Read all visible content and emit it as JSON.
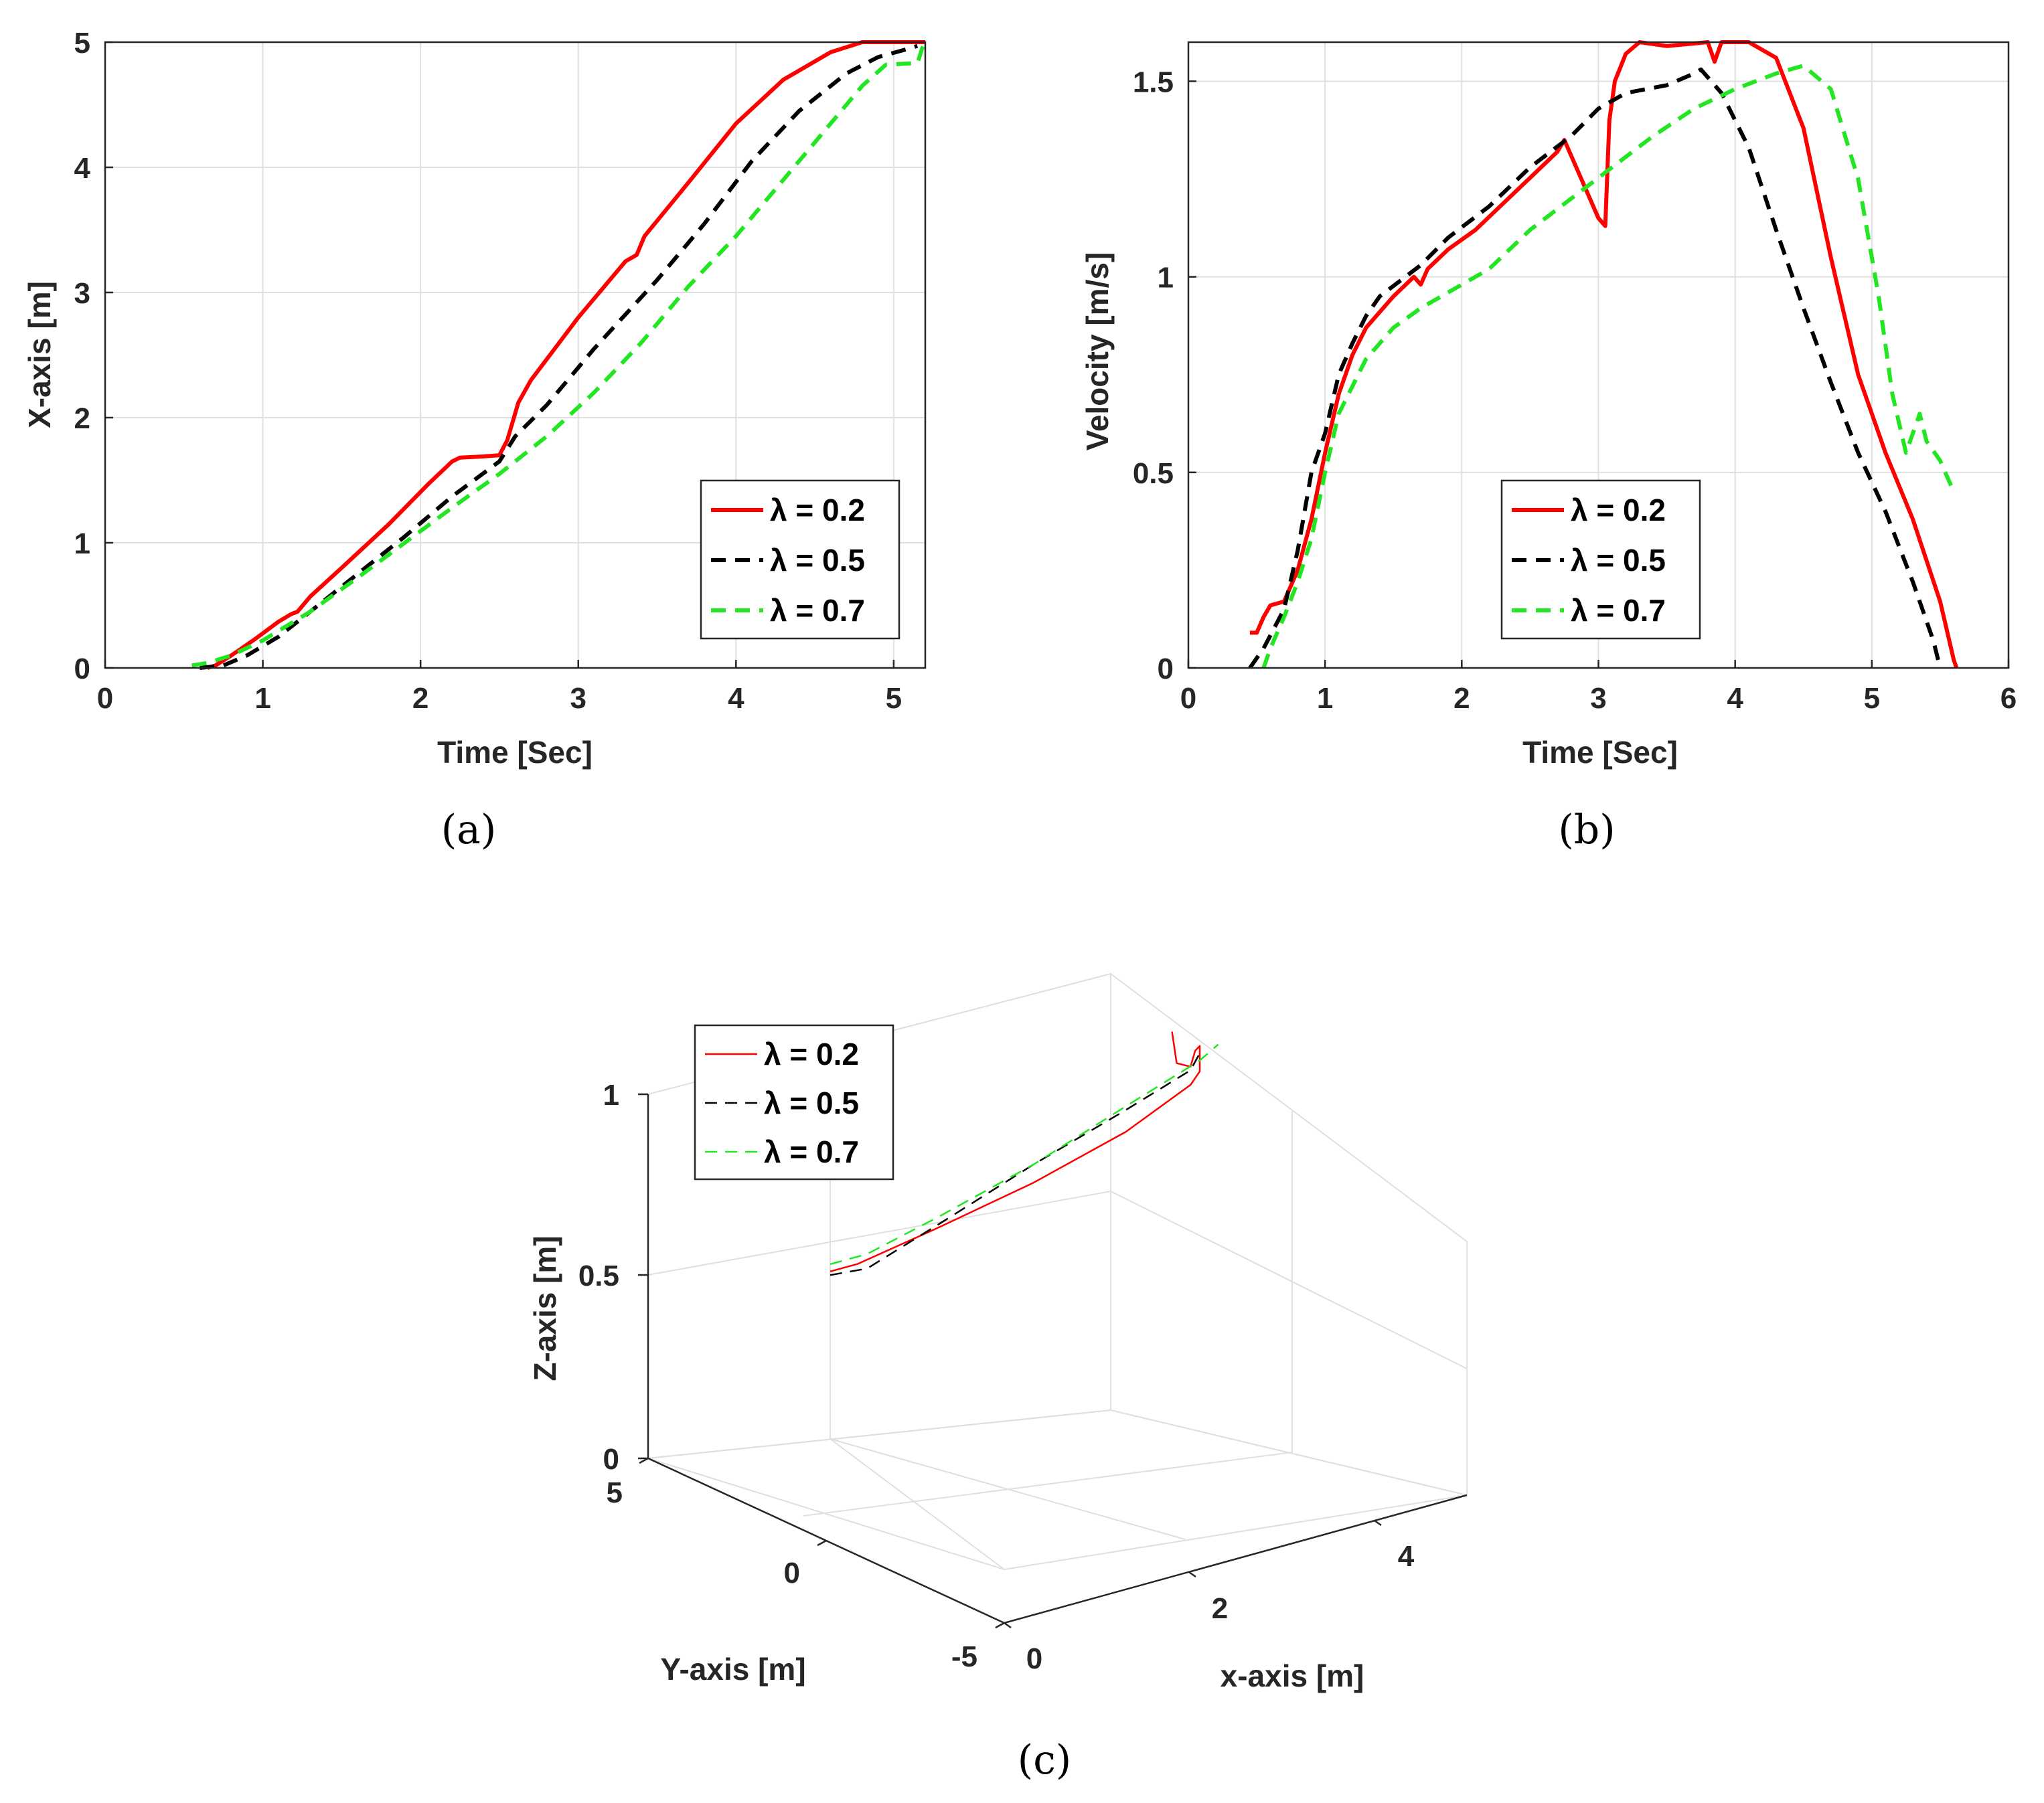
{
  "colors": {
    "red": "#ff0000",
    "black": "#000000",
    "green": "#22e622",
    "grid": "#dfdfdf",
    "axis": "#262626"
  },
  "captions": {
    "a": "(a)",
    "b": "(b)",
    "c": "(c)"
  },
  "legend_labels": [
    "λ = 0.2",
    "λ = 0.5",
    "λ = 0.7"
  ],
  "chart_data": [
    {
      "id": "a",
      "type": "line",
      "xlabel": "Time [Sec]",
      "ylabel": "X-axis [m]",
      "xlim": [
        0,
        5.2
      ],
      "ylim": [
        0,
        5
      ],
      "xticks": [
        0,
        1,
        2,
        3,
        4,
        5
      ],
      "yticks": [
        0,
        1,
        2,
        3,
        4,
        5
      ],
      "xtick_labels": [
        "0",
        "1",
        "2",
        "3",
        "4",
        "5"
      ],
      "ytick_labels": [
        "0",
        "1",
        "2",
        "3",
        "4",
        "5"
      ],
      "grid": true,
      "legend_position": "bottom-right",
      "series": [
        {
          "name": "λ = 0.2",
          "style": "solid",
          "color": "red",
          "points": [
            [
              0.65,
              0
            ],
            [
              0.7,
              0.02
            ],
            [
              0.8,
              0.1
            ],
            [
              0.95,
              0.23
            ],
            [
              1.1,
              0.37
            ],
            [
              1.18,
              0.43
            ],
            [
              1.22,
              0.45
            ],
            [
              1.3,
              0.57
            ],
            [
              1.5,
              0.8
            ],
            [
              1.8,
              1.15
            ],
            [
              2.05,
              1.47
            ],
            [
              2.2,
              1.65
            ],
            [
              2.25,
              1.68
            ],
            [
              2.4,
              1.69
            ],
            [
              2.5,
              1.7
            ],
            [
              2.55,
              1.82
            ],
            [
              2.62,
              2.12
            ],
            [
              2.7,
              2.3
            ],
            [
              3.0,
              2.8
            ],
            [
              3.3,
              3.25
            ],
            [
              3.37,
              3.3
            ],
            [
              3.42,
              3.45
            ],
            [
              3.7,
              3.88
            ],
            [
              4.0,
              4.35
            ],
            [
              4.3,
              4.7
            ],
            [
              4.6,
              4.92
            ],
            [
              4.8,
              5
            ],
            [
              5.2,
              5
            ]
          ]
        },
        {
          "name": "λ = 0.5",
          "style": "dashed",
          "color": "black",
          "points": [
            [
              0.6,
              0
            ],
            [
              0.75,
              0.02
            ],
            [
              0.9,
              0.1
            ],
            [
              1.1,
              0.25
            ],
            [
              1.3,
              0.45
            ],
            [
              1.6,
              0.75
            ],
            [
              1.9,
              1.05
            ],
            [
              2.2,
              1.37
            ],
            [
              2.5,
              1.65
            ],
            [
              2.6,
              1.85
            ],
            [
              2.8,
              2.1
            ],
            [
              3.1,
              2.55
            ],
            [
              3.5,
              3.1
            ],
            [
              3.8,
              3.55
            ],
            [
              4.1,
              4.05
            ],
            [
              4.4,
              4.45
            ],
            [
              4.7,
              4.75
            ],
            [
              4.9,
              4.88
            ],
            [
              5.1,
              4.95
            ],
            [
              5.15,
              4.97
            ]
          ]
        },
        {
          "name": "λ = 0.7",
          "style": "dashed",
          "color": "green",
          "points": [
            [
              0.55,
              0.02
            ],
            [
              0.65,
              0.04
            ],
            [
              0.8,
              0.1
            ],
            [
              1.0,
              0.22
            ],
            [
              1.3,
              0.45
            ],
            [
              1.6,
              0.72
            ],
            [
              1.9,
              1.0
            ],
            [
              2.2,
              1.28
            ],
            [
              2.5,
              1.55
            ],
            [
              2.8,
              1.85
            ],
            [
              3.1,
              2.2
            ],
            [
              3.4,
              2.6
            ],
            [
              3.7,
              3.05
            ],
            [
              4.0,
              3.45
            ],
            [
              4.3,
              3.9
            ],
            [
              4.6,
              4.35
            ],
            [
              4.8,
              4.65
            ],
            [
              4.95,
              4.82
            ],
            [
              5.1,
              4.83
            ],
            [
              5.15,
              4.83
            ],
            [
              5.18,
              4.95
            ],
            [
              5.2,
              5.0
            ]
          ]
        }
      ]
    },
    {
      "id": "b",
      "type": "line",
      "xlabel": "Time [Sec]",
      "ylabel": "Velocity [m/s]",
      "xlim": [
        0,
        6
      ],
      "ylim": [
        0,
        1.6
      ],
      "xticks": [
        0,
        1,
        2,
        3,
        4,
        5,
        6
      ],
      "yticks": [
        0,
        0.5,
        1,
        1.5
      ],
      "xtick_labels": [
        "0",
        "1",
        "2",
        "3",
        "4",
        "5",
        "6"
      ],
      "ytick_labels": [
        "0",
        "0.5",
        "1",
        "1.5"
      ],
      "grid": true,
      "legend_position": "bottom-center",
      "series": [
        {
          "name": "λ = 0.2",
          "style": "solid",
          "color": "red",
          "points": [
            [
              0.45,
              0.09
            ],
            [
              0.5,
              0.09
            ],
            [
              0.55,
              0.13
            ],
            [
              0.6,
              0.16
            ],
            [
              0.7,
              0.17
            ],
            [
              0.8,
              0.25
            ],
            [
              0.9,
              0.38
            ],
            [
              1.0,
              0.55
            ],
            [
              1.1,
              0.7
            ],
            [
              1.2,
              0.8
            ],
            [
              1.3,
              0.87
            ],
            [
              1.5,
              0.95
            ],
            [
              1.65,
              1.0
            ],
            [
              1.7,
              0.98
            ],
            [
              1.75,
              1.02
            ],
            [
              1.9,
              1.07
            ],
            [
              2.1,
              1.12
            ],
            [
              2.4,
              1.22
            ],
            [
              2.7,
              1.32
            ],
            [
              2.75,
              1.35
            ],
            [
              2.85,
              1.27
            ],
            [
              3.0,
              1.15
            ],
            [
              3.05,
              1.13
            ],
            [
              3.08,
              1.4
            ],
            [
              3.12,
              1.5
            ],
            [
              3.2,
              1.57
            ],
            [
              3.3,
              1.6
            ],
            [
              3.5,
              1.59
            ],
            [
              3.8,
              1.6
            ],
            [
              3.85,
              1.55
            ],
            [
              3.9,
              1.6
            ],
            [
              4.1,
              1.6
            ],
            [
              4.3,
              1.56
            ],
            [
              4.5,
              1.38
            ],
            [
              4.7,
              1.05
            ],
            [
              4.9,
              0.75
            ],
            [
              5.1,
              0.55
            ],
            [
              5.3,
              0.38
            ],
            [
              5.5,
              0.17
            ],
            [
              5.6,
              0.02
            ],
            [
              5.62,
              0
            ]
          ]
        },
        {
          "name": "λ = 0.5",
          "style": "dashed",
          "color": "black",
          "points": [
            [
              0.45,
              0
            ],
            [
              0.55,
              0.05
            ],
            [
              0.7,
              0.15
            ],
            [
              0.8,
              0.3
            ],
            [
              0.9,
              0.5
            ],
            [
              1.0,
              0.6
            ],
            [
              1.1,
              0.75
            ],
            [
              1.2,
              0.83
            ],
            [
              1.3,
              0.9
            ],
            [
              1.4,
              0.95
            ],
            [
              1.55,
              0.99
            ],
            [
              1.7,
              1.03
            ],
            [
              1.9,
              1.1
            ],
            [
              2.2,
              1.18
            ],
            [
              2.5,
              1.28
            ],
            [
              2.8,
              1.36
            ],
            [
              3.0,
              1.43
            ],
            [
              3.2,
              1.47
            ],
            [
              3.5,
              1.49
            ],
            [
              3.7,
              1.52
            ],
            [
              3.75,
              1.53
            ],
            [
              3.9,
              1.47
            ],
            [
              4.1,
              1.33
            ],
            [
              4.3,
              1.12
            ],
            [
              4.5,
              0.92
            ],
            [
              4.7,
              0.73
            ],
            [
              4.9,
              0.55
            ],
            [
              5.1,
              0.4
            ],
            [
              5.3,
              0.22
            ],
            [
              5.45,
              0.07
            ],
            [
              5.5,
              0
            ]
          ]
        },
        {
          "name": "λ = 0.7",
          "style": "dashed",
          "color": "green",
          "points": [
            [
              0.55,
              0
            ],
            [
              0.6,
              0.05
            ],
            [
              0.7,
              0.13
            ],
            [
              0.8,
              0.22
            ],
            [
              0.9,
              0.33
            ],
            [
              1.0,
              0.5
            ],
            [
              1.1,
              0.65
            ],
            [
              1.3,
              0.79
            ],
            [
              1.5,
              0.87
            ],
            [
              1.7,
              0.92
            ],
            [
              1.9,
              0.96
            ],
            [
              2.2,
              1.02
            ],
            [
              2.5,
              1.12
            ],
            [
              2.8,
              1.2
            ],
            [
              3.1,
              1.28
            ],
            [
              3.4,
              1.36
            ],
            [
              3.7,
              1.43
            ],
            [
              4.0,
              1.48
            ],
            [
              4.3,
              1.52
            ],
            [
              4.5,
              1.54
            ],
            [
              4.7,
              1.48
            ],
            [
              4.9,
              1.25
            ],
            [
              5.05,
              0.95
            ],
            [
              5.15,
              0.7
            ],
            [
              5.25,
              0.55
            ],
            [
              5.3,
              0.6
            ],
            [
              5.35,
              0.65
            ],
            [
              5.4,
              0.58
            ],
            [
              5.5,
              0.53
            ],
            [
              5.6,
              0.45
            ]
          ]
        }
      ]
    },
    {
      "id": "c",
      "type": "line3d",
      "xlabel": "x-axis [m]",
      "ylabel": "Y-axis [m]",
      "zlabel": "Z-axis [m]",
      "xlim": [
        0,
        5
      ],
      "ylim": [
        -5,
        5
      ],
      "zlim": [
        0,
        1
      ],
      "xticks": [
        0,
        2,
        4
      ],
      "yticks": [
        -5,
        0,
        5
      ],
      "zticks": [
        0,
        0.5,
        1
      ],
      "xtick_labels": [
        "0",
        "2",
        "4"
      ],
      "ytick_labels": [
        "-5",
        "0",
        "5"
      ],
      "ztick_labels": [
        "0",
        "0.5",
        "1"
      ],
      "grid": true,
      "legend_position": "top-left",
      "series": [
        {
          "name": "λ = 0.2",
          "style": "solid",
          "color": "red",
          "points": [
            [
              0,
              0,
              0.46
            ],
            [
              0.3,
              0,
              0.46
            ],
            [
              1.2,
              0,
              0.5
            ],
            [
              2.2,
              0,
              0.55
            ],
            [
              3.2,
              0,
              0.62
            ],
            [
              3.9,
              0,
              0.7
            ],
            [
              4.0,
              0,
              0.73
            ],
            [
              4.0,
              0,
              0.8
            ],
            [
              3.95,
              0,
              0.79
            ],
            [
              3.9,
              0,
              0.75
            ],
            [
              3.75,
              0,
              0.77
            ],
            [
              3.7,
              0,
              0.86
            ]
          ]
        },
        {
          "name": "λ = 0.5",
          "style": "dashed",
          "color": "black",
          "points": [
            [
              0,
              0,
              0.45
            ],
            [
              0.4,
              0,
              0.44
            ],
            [
              1.2,
              0,
              0.51
            ],
            [
              2.2,
              0,
              0.6
            ],
            [
              3.2,
              0,
              0.68
            ],
            [
              3.9,
              0,
              0.74
            ],
            [
              4.0,
              0,
              0.78
            ]
          ]
        },
        {
          "name": "λ = 0.7",
          "style": "dashed",
          "color": "green",
          "points": [
            [
              0,
              0,
              0.48
            ],
            [
              0.4,
              0,
              0.48
            ],
            [
              1.2,
              0,
              0.53
            ],
            [
              2.2,
              0,
              0.6
            ],
            [
              3.2,
              0,
              0.69
            ],
            [
              4.0,
              0,
              0.76
            ],
            [
              4.2,
              0,
              0.79
            ]
          ]
        }
      ]
    }
  ]
}
